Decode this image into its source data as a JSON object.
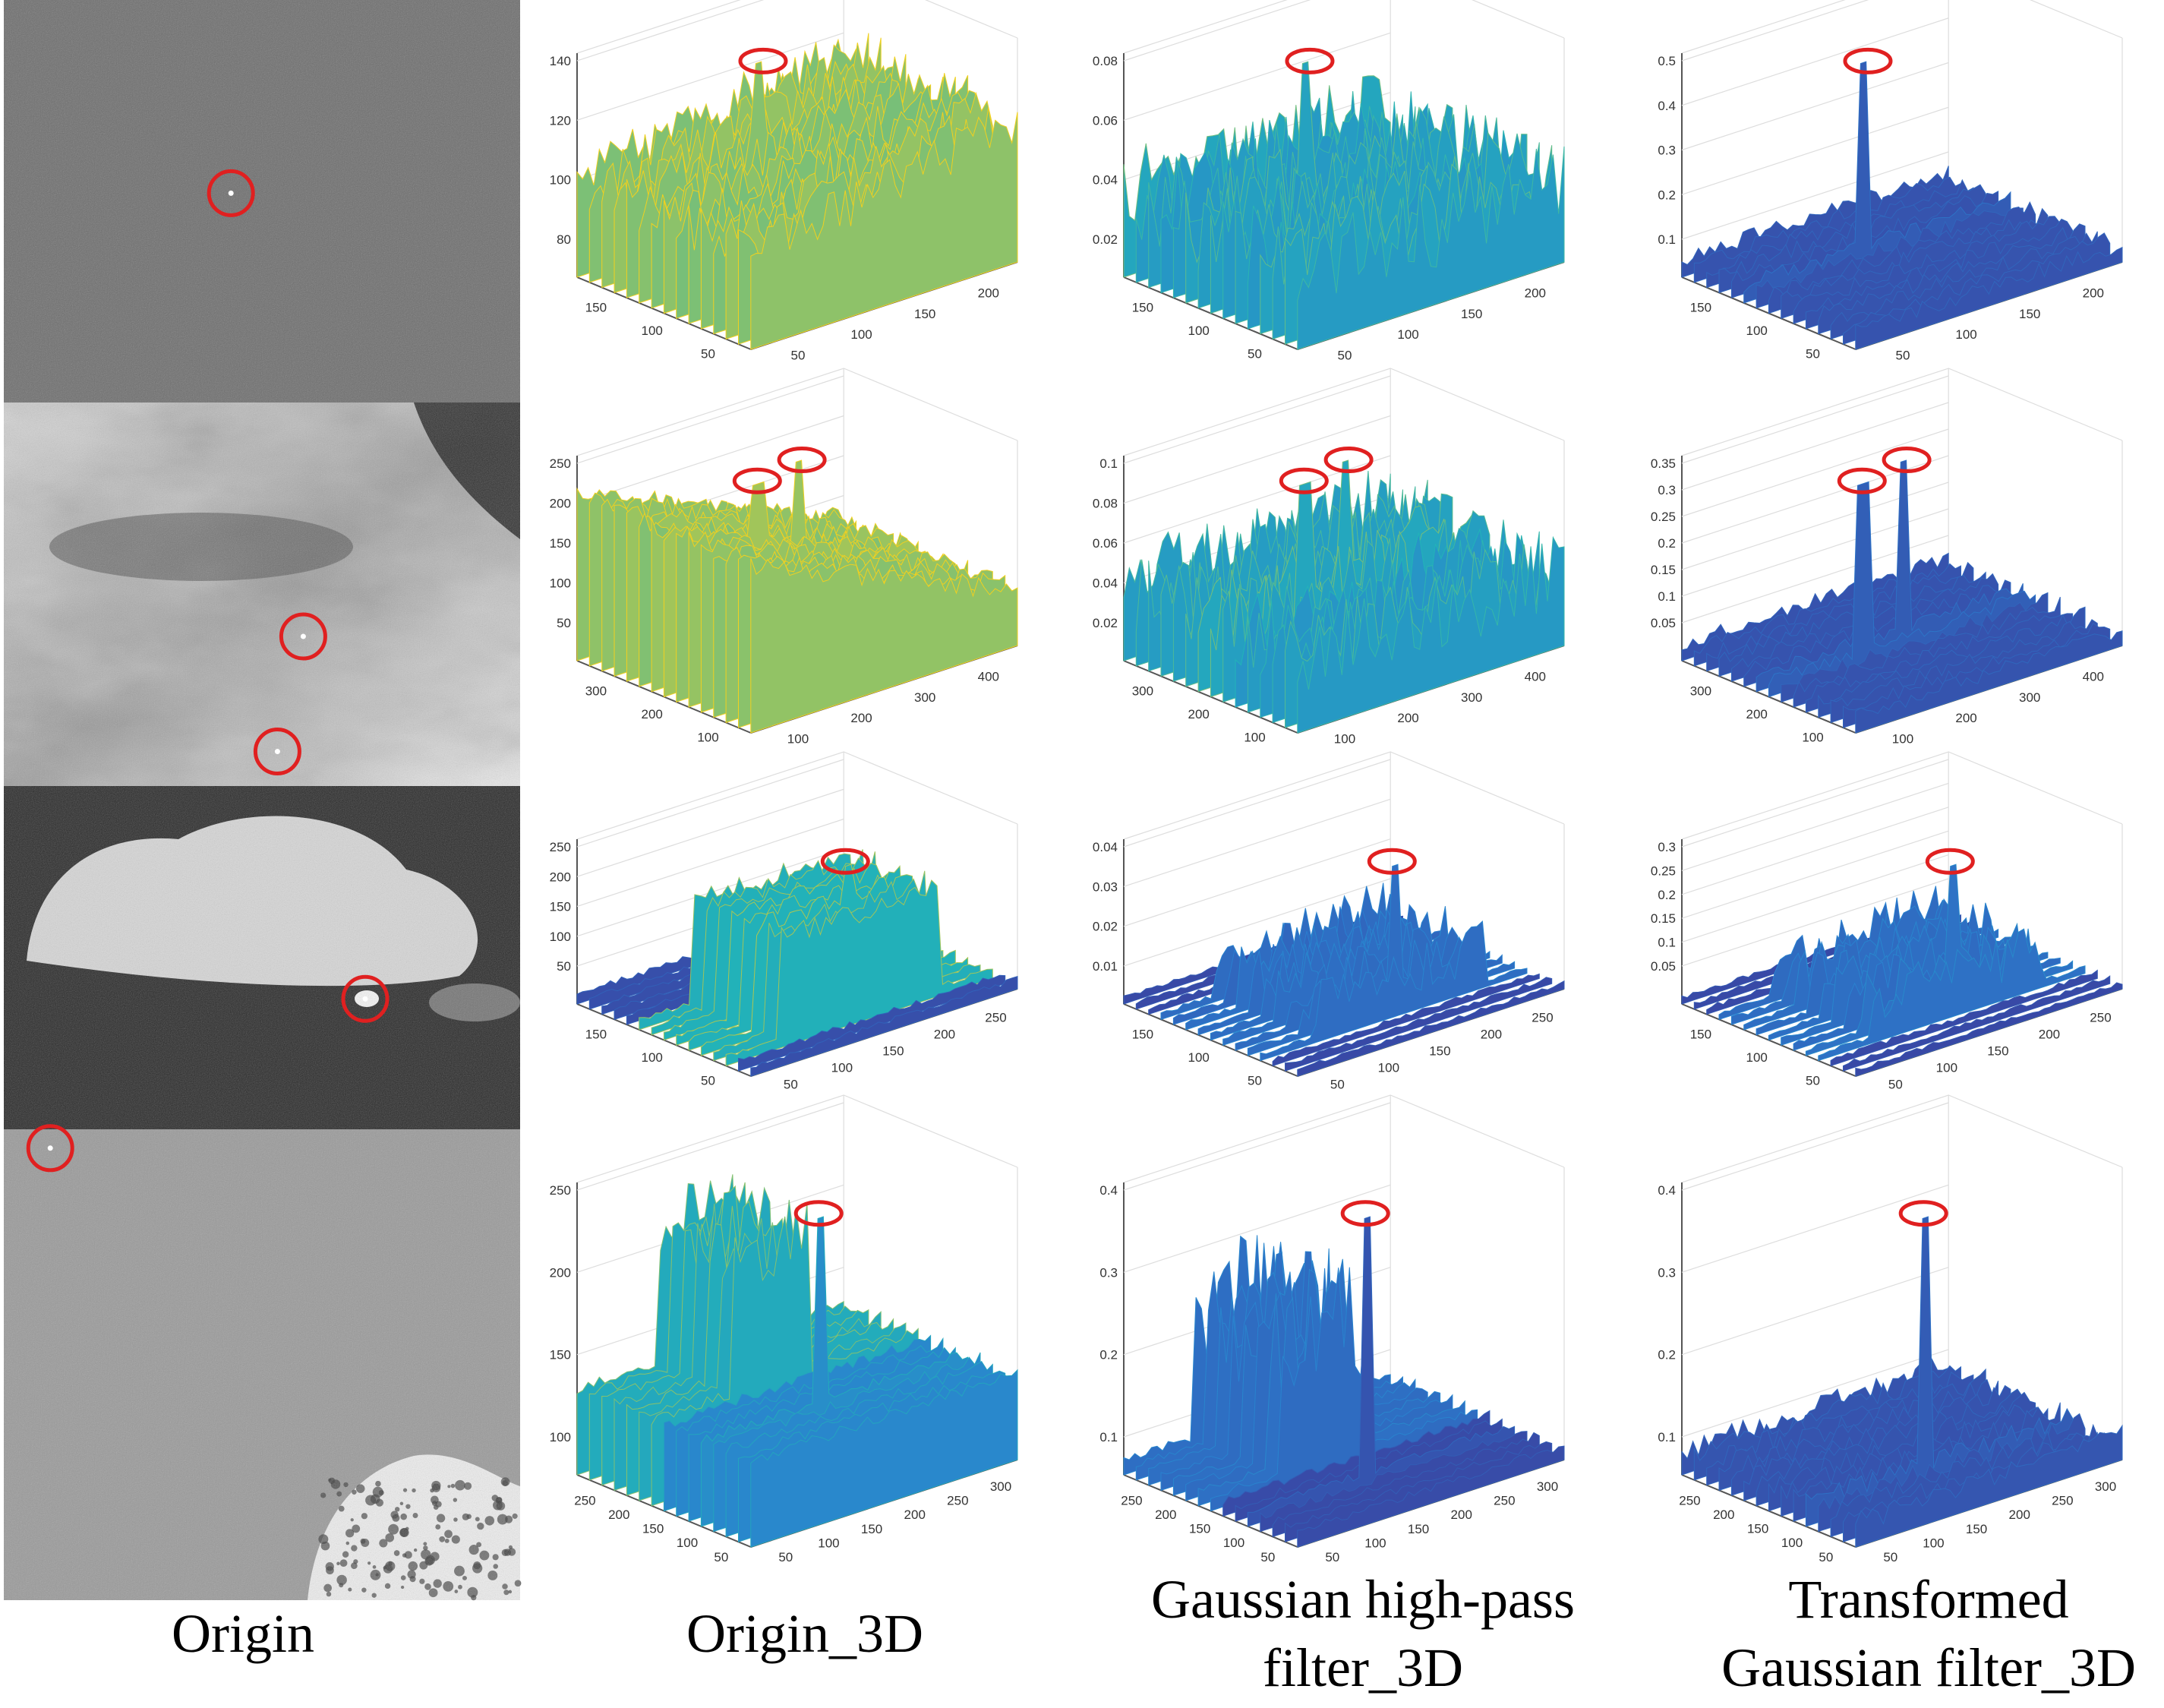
{
  "figure": {
    "captions": [
      "Origin",
      "Origin_3D",
      "Gaussian high-pass filter_3D",
      "Transformed Gaussian filter_3D"
    ],
    "caption_lines": [
      [
        "Origin"
      ],
      [
        "Origin_3D"
      ],
      [
        "Gaussian high-pass",
        "filter_3D"
      ],
      [
        "Transformed",
        "Gaussian filter_3D"
      ]
    ],
    "colors": {
      "marker": "#e02020",
      "surface_low": "#3b3f9e",
      "surface_mid": "#22a8c8",
      "surface_high": "#f0d020"
    },
    "photos": [
      {
        "row": 0,
        "kind": "noise",
        "base": "#6e6e6e",
        "markers": [
          [
            0.44,
            0.48
          ]
        ]
      },
      {
        "row": 1,
        "kind": "clouds",
        "base": "#bdbdbd",
        "markers": [
          [
            0.58,
            0.61
          ],
          [
            0.53,
            0.91
          ]
        ]
      },
      {
        "row": 2,
        "kind": "cloud-dark",
        "base": "#2a2a2a",
        "markers": [
          [
            0.7,
            0.62
          ]
        ]
      },
      {
        "row": 3,
        "kind": "sky-tree",
        "base": "#9a9a9a",
        "markers": [
          [
            0.09,
            0.04
          ]
        ]
      }
    ]
  },
  "chart_data": [
    {
      "type": "surface",
      "row": 1,
      "col": 1,
      "z_ticks": [
        "140",
        "120",
        "100",
        "80"
      ],
      "x_ticks": [
        "50",
        "100",
        "150",
        "200"
      ],
      "y_ticks": [
        "150",
        "100",
        "50"
      ],
      "style": "noisy-ramp",
      "peaks": [
        [
          0.45,
          0.62
        ]
      ]
    },
    {
      "type": "surface",
      "row": 1,
      "col": 2,
      "z_ticks": [
        "0.08",
        "0.06",
        "0.04",
        "0.02"
      ],
      "x_ticks": [
        "50",
        "100",
        "150",
        "200"
      ],
      "y_ticks": [
        "150",
        "100",
        "50"
      ],
      "style": "noisy",
      "peaks": [
        [
          0.45,
          0.62
        ]
      ]
    },
    {
      "type": "surface",
      "row": 1,
      "col": 3,
      "z_ticks": [
        "0.5",
        "0.4",
        "0.3",
        "0.2",
        "0.1"
      ],
      "x_ticks": [
        "50",
        "100",
        "150",
        "200"
      ],
      "y_ticks": [
        "150",
        "100",
        "50"
      ],
      "style": "flat",
      "peaks": [
        [
          0.45,
          0.62
        ]
      ]
    },
    {
      "type": "surface",
      "row": 2,
      "col": 1,
      "z_ticks": [
        "250",
        "200",
        "150",
        "100",
        "50"
      ],
      "x_ticks": [
        "100",
        "200",
        "300",
        "400"
      ],
      "y_ticks": [
        "300",
        "200",
        "100"
      ],
      "style": "sloped",
      "peaks": [
        [
          0.35,
          0.5
        ],
        [
          0.55,
          0.55
        ]
      ]
    },
    {
      "type": "surface",
      "row": 2,
      "col": 2,
      "z_ticks": [
        "0.1",
        "0.08",
        "0.06",
        "0.04",
        "0.02"
      ],
      "x_ticks": [
        "100",
        "200",
        "300",
        "400"
      ],
      "y_ticks": [
        "300",
        "200",
        "100"
      ],
      "style": "noisy",
      "peaks": [
        [
          0.35,
          0.5
        ],
        [
          0.55,
          0.55
        ]
      ]
    },
    {
      "type": "surface",
      "row": 2,
      "col": 3,
      "z_ticks": [
        "0.35",
        "0.3",
        "0.25",
        "0.2",
        "0.15",
        "0.1",
        "0.05"
      ],
      "x_ticks": [
        "100",
        "200",
        "300",
        "400"
      ],
      "y_ticks": [
        "300",
        "200",
        "100"
      ],
      "style": "flat",
      "peaks": [
        [
          0.35,
          0.5
        ],
        [
          0.55,
          0.55
        ]
      ]
    },
    {
      "type": "surface",
      "row": 3,
      "col": 1,
      "z_ticks": [
        "250",
        "200",
        "150",
        "100",
        "50"
      ],
      "x_ticks": [
        "50",
        "100",
        "150",
        "200",
        "250"
      ],
      "y_ticks": [
        "150",
        "100",
        "50"
      ],
      "style": "plateau",
      "peaks": [
        [
          0.55,
          0.3
        ]
      ]
    },
    {
      "type": "surface",
      "row": 3,
      "col": 2,
      "z_ticks": [
        "0.04",
        "0.03",
        "0.02",
        "0.01"
      ],
      "x_ticks": [
        "50",
        "100",
        "150",
        "200",
        "250"
      ],
      "y_ticks": [
        "150",
        "100",
        "50"
      ],
      "style": "ring",
      "peaks": [
        [
          0.55,
          0.3
        ]
      ]
    },
    {
      "type": "surface",
      "row": 3,
      "col": 3,
      "z_ticks": [
        "0.3",
        "0.25",
        "0.2",
        "0.15",
        "0.1",
        "0.05"
      ],
      "x_ticks": [
        "50",
        "100",
        "150",
        "200",
        "250"
      ],
      "y_ticks": [
        "150",
        "100",
        "50"
      ],
      "style": "ring",
      "peaks": [
        [
          0.55,
          0.3
        ]
      ]
    },
    {
      "type": "surface",
      "row": 4,
      "col": 1,
      "z_ticks": [
        "250",
        "200",
        "150",
        "100"
      ],
      "x_ticks": [
        "50",
        "100",
        "150",
        "200",
        "250",
        "300"
      ],
      "y_ticks": [
        "250",
        "200",
        "150",
        "100",
        "50"
      ],
      "style": "wall",
      "peaks": [
        [
          0.45,
          0.3
        ]
      ]
    },
    {
      "type": "surface",
      "row": 4,
      "col": 2,
      "z_ticks": [
        "0.4",
        "0.3",
        "0.2",
        "0.1"
      ],
      "x_ticks": [
        "50",
        "100",
        "150",
        "200",
        "250",
        "300"
      ],
      "y_ticks": [
        "250",
        "200",
        "150",
        "100",
        "50"
      ],
      "style": "wall-spiky",
      "peaks": [
        [
          0.45,
          0.3
        ]
      ]
    },
    {
      "type": "surface",
      "row": 4,
      "col": 3,
      "z_ticks": [
        "0.4",
        "0.3",
        "0.2",
        "0.1"
      ],
      "x_ticks": [
        "50",
        "100",
        "150",
        "200",
        "250",
        "300"
      ],
      "y_ticks": [
        "250",
        "200",
        "150",
        "100",
        "50"
      ],
      "style": "flat",
      "peaks": [
        [
          0.45,
          0.3
        ]
      ]
    }
  ]
}
